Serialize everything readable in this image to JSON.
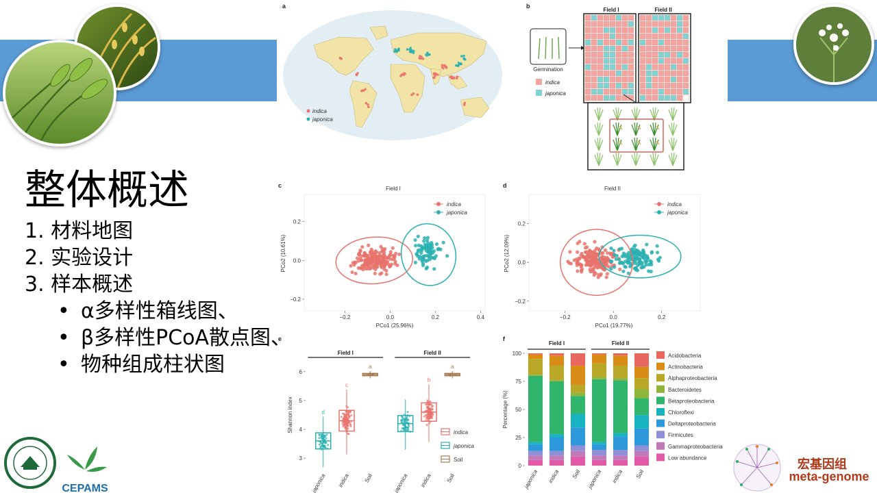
{
  "slide": {
    "title": "整体概述",
    "outline": [
      "1. 材料地图",
      "2. 实验设计",
      "3. 样本概述"
    ],
    "bullets": [
      "α多样性箱线图、",
      "β多样性PCoA散点图、",
      "物种组成柱状图"
    ]
  },
  "colors": {
    "band": "#5b9bd5",
    "indica": "#e8736c",
    "japonica": "#2ab0b0",
    "soil": "#a67c52",
    "brand": "#b03a1a"
  },
  "panels": {
    "a": {
      "letter": "a",
      "legend": [
        "indica",
        "japonica"
      ]
    },
    "b": {
      "letter": "b",
      "fields": [
        "Field I",
        "Field II"
      ],
      "germination": "Germination",
      "legend": [
        "indica",
        "japonica"
      ]
    }
  },
  "chart_data": [
    {
      "panel": "c",
      "type": "scatter",
      "title": "Field I",
      "xlabel": "PCo1 (25.96%)",
      "ylabel": "PCo2 (10.61%)",
      "xticks": [
        "−0.2",
        "0.0",
        "0.2",
        "0.4"
      ],
      "yticks": [
        "0.2",
        "0.0",
        "−0.2"
      ],
      "xlim": [
        -0.38,
        0.42
      ],
      "ylim": [
        -0.26,
        0.34
      ],
      "legend": [
        "indica",
        "japonica"
      ],
      "legend_position": "top-right"
    },
    {
      "panel": "d",
      "type": "scatter",
      "title": "Field II",
      "xlabel": "PCo1 (19.77%)",
      "ylabel": "PCo2 (12.09%)",
      "xticks": [
        "−0.2",
        "0.0",
        "0.2"
      ],
      "yticks": [
        "0.2",
        "0.0",
        "−0.2"
      ],
      "xlim": [
        -0.35,
        0.36
      ],
      "ylim": [
        -0.25,
        0.35
      ],
      "legend": [
        "indica",
        "japonica"
      ],
      "legend_position": "top-right"
    },
    {
      "panel": "e",
      "type": "box",
      "ylabel": "Shannon index",
      "yticks": [
        "6",
        "5",
        "4",
        "3"
      ],
      "ylim": [
        2.6,
        6.4
      ],
      "groups": [
        "Field I",
        "Field II"
      ],
      "categories": [
        "japonica",
        "indica",
        "Soil",
        "japonica",
        "indica",
        "Soil"
      ],
      "medians": [
        3.6,
        4.3,
        5.9,
        4.2,
        4.6,
        5.9
      ],
      "letters": [
        "d",
        "c",
        "a",
        "",
        "b",
        "a"
      ],
      "legend": [
        "indica",
        "japonica",
        "Soil"
      ]
    },
    {
      "panel": "f",
      "type": "stacked_bar",
      "ylabel": "Percentage (%)",
      "yticks": [
        "100",
        "75",
        "50",
        "25",
        "0"
      ],
      "ylim": [
        0,
        100
      ],
      "groups": [
        "Field I",
        "Field II"
      ],
      "categories": [
        "japonica",
        "indica",
        "Soil",
        "japonica",
        "indica",
        "Soil"
      ],
      "series": [
        {
          "name": "Low abundance",
          "color": "#e05aa7",
          "values": [
            5,
            5,
            8,
            5,
            5,
            8
          ]
        },
        {
          "name": "Gammaproteobacteria",
          "color": "#c07ab8",
          "values": [
            4,
            4,
            5,
            4,
            4,
            5
          ]
        },
        {
          "name": "Firmicutes",
          "color": "#8f8fd8",
          "values": [
            4,
            4,
            5,
            5,
            5,
            5
          ]
        },
        {
          "name": "Deltaproteobacteria",
          "color": "#2d98da",
          "values": [
            6,
            12,
            16,
            5,
            12,
            15
          ]
        },
        {
          "name": "Chloroflexi",
          "color": "#17b3c1",
          "values": [
            2,
            3,
            12,
            2,
            3,
            12
          ]
        },
        {
          "name": "Betaproteobacteria",
          "color": "#31b46c",
          "values": [
            59,
            47,
            16,
            56,
            47,
            15
          ]
        },
        {
          "name": "Bacteroidetes",
          "color": "#8fb43a",
          "values": [
            1,
            1,
            3,
            2,
            2,
            8
          ]
        },
        {
          "name": "Alphaproteobacteria",
          "color": "#b9a828",
          "values": [
            14,
            13,
            7,
            12,
            11,
            10
          ]
        },
        {
          "name": "Actinobacteria",
          "color": "#d98c16",
          "values": [
            4,
            9,
            17,
            8,
            9,
            10
          ]
        },
        {
          "name": "Acidobacteria",
          "color": "#e8675e",
          "values": [
            1,
            2,
            11,
            1,
            2,
            12
          ]
        }
      ],
      "legend_order": [
        "Acidobacteria",
        "Actinobacteria",
        "Alphaproteobacteria",
        "Bacteroidetes",
        "Betaproteobacteria",
        "Chloroflexi",
        "Deltaproteobacteria",
        "Firmicutes",
        "Gammaproteobacteria",
        "Low abundance"
      ]
    }
  ],
  "logos": {
    "cepams": "CEPAMS",
    "brand_line1": "宏基因组",
    "brand_line2": "meta-genome"
  }
}
